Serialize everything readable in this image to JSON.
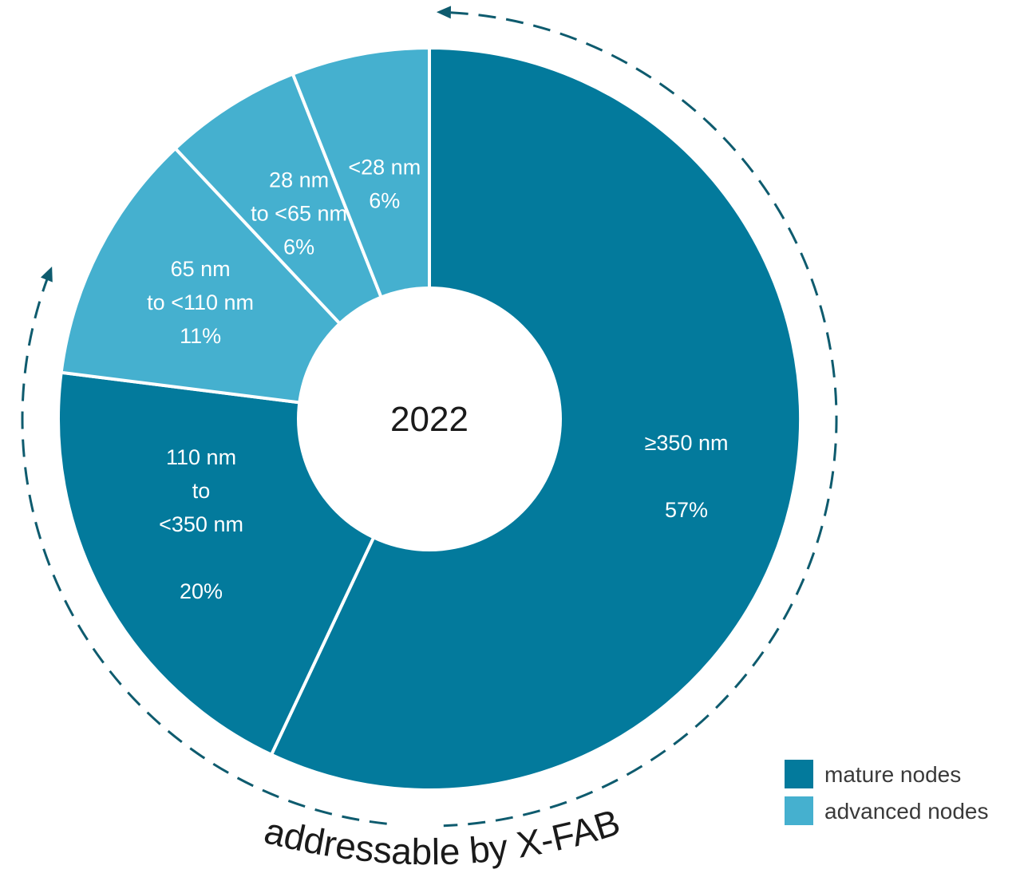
{
  "chart_data": {
    "type": "pie",
    "variant": "donut",
    "center_label": "2022",
    "categories": [
      ">=350 nm",
      "110 nm to <350 nm",
      "65 nm to <110 nm",
      "28 nm to <65 nm",
      "<28 nm"
    ],
    "values": [
      57,
      20,
      11,
      6,
      6
    ],
    "slices": [
      {
        "lines": [
          "≥350 nm",
          "",
          "57%"
        ],
        "value": 57,
        "group": "mature"
      },
      {
        "lines": [
          "110 nm",
          "to",
          "<350 nm",
          "",
          "20%"
        ],
        "value": 20,
        "group": "mature"
      },
      {
        "lines": [
          "65 nm",
          "to <110 nm",
          "11%"
        ],
        "value": 11,
        "group": "advanced"
      },
      {
        "lines": [
          "28 nm",
          "to <65 nm",
          "6%"
        ],
        "value": 6,
        "group": "advanced"
      },
      {
        "lines": [
          "<28 nm",
          "6%"
        ],
        "value": 6,
        "group": "advanced"
      }
    ],
    "legend": [
      {
        "key": "mature",
        "label": "mature nodes",
        "color": "#037a9c"
      },
      {
        "key": "advanced",
        "label": "advanced nodes",
        "color": "#45b0cf"
      }
    ],
    "legend_position": "bottom-right",
    "annotation": "addressable by X-FAB",
    "annotation_arrow_color": "#0e5b6e"
  }
}
